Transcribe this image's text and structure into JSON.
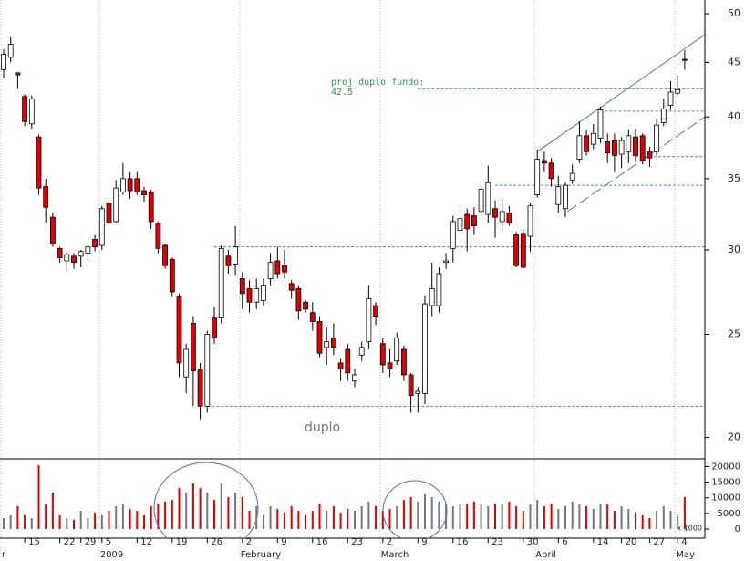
{
  "chart_data": {
    "type": "candlestick",
    "log_scale": true,
    "up_color": "#ffffff",
    "down_color": "#e00000",
    "level_color": "#4a8ab0",
    "trend_color": "#4a6fd0",
    "ylim": [
      19.1,
      51.5
    ],
    "yticks": [
      20,
      25,
      30,
      35,
      40,
      45,
      50
    ],
    "categories": [
      null,
      null,
      null,
      "15",
      null,
      null,
      null,
      null,
      "22",
      null,
      null,
      "29",
      null,
      null,
      "5",
      null,
      null,
      null,
      null,
      "12",
      null,
      null,
      null,
      null,
      "19",
      null,
      null,
      null,
      null,
      "26",
      null,
      null,
      null,
      null,
      "2",
      null,
      null,
      null,
      null,
      "9",
      null,
      null,
      null,
      null,
      "16",
      null,
      null,
      null,
      null,
      "23",
      null,
      null,
      null,
      null,
      "2",
      null,
      null,
      null,
      null,
      "9",
      null,
      null,
      null,
      null,
      "16",
      null,
      null,
      null,
      null,
      "23",
      null,
      null,
      null,
      null,
      "30",
      null,
      null,
      null,
      null,
      "6",
      null,
      null,
      null,
      null,
      "14",
      null,
      null,
      null,
      "20",
      null,
      null,
      null,
      "27",
      null,
      null,
      null,
      "4",
      null
    ],
    "months": [
      "r",
      null,
      null,
      null,
      null,
      null,
      null,
      null,
      null,
      null,
      null,
      null,
      null,
      null,
      "2009",
      null,
      null,
      null,
      null,
      null,
      null,
      null,
      null,
      null,
      null,
      null,
      null,
      null,
      null,
      null,
      null,
      null,
      null,
      null,
      "February",
      null,
      null,
      null,
      null,
      null,
      null,
      null,
      null,
      null,
      null,
      null,
      null,
      null,
      null,
      null,
      null,
      null,
      null,
      null,
      "March",
      null,
      null,
      null,
      null,
      null,
      null,
      null,
      null,
      null,
      null,
      null,
      null,
      null,
      null,
      null,
      null,
      null,
      null,
      null,
      null,
      null,
      "April",
      null,
      null,
      null,
      null,
      null,
      null,
      null,
      null,
      null,
      null,
      null,
      null,
      null,
      null,
      null,
      null,
      null,
      null,
      null,
      "May",
      null
    ],
    "open": [
      44.3,
      45.5,
      44,
      41.8,
      39.4,
      38.3,
      34.4,
      32.2,
      30.1,
      29.3,
      29.6,
      29.6,
      29.8,
      30.7,
      30.3,
      33.2,
      31.9,
      34,
      35.0,
      35.0,
      34.1,
      34.0,
      31.8,
      30.3,
      29.4,
      27.1,
      22.8,
      25.6,
      23.2,
      21.4,
      25.9,
      25.9,
      29.6,
      29.1,
      28.2,
      27.6,
      26.8,
      26.9,
      28.2,
      29.3,
      29.0,
      27.9,
      27.6,
      26.8,
      26.2,
      25.7,
      24.3,
      24.8,
      23.5,
      24.2,
      22.6,
      23.9,
      24.6,
      26.6,
      24.5,
      23.5,
      23.6,
      24.2,
      22.9,
      22.0,
      22.0,
      26.6,
      26.6,
      29.2,
      30.1,
      31.3,
      32.4,
      32.3,
      32.6,
      32.4,
      32.8,
      31.9,
      32.5,
      31,
      31.1,
      30.9,
      33.8,
      36.4,
      36.2,
      33.1,
      32.8,
      34.9,
      36.5,
      38.4,
      37.7,
      38.2,
      37.9,
      38,
      36.9,
      37.1,
      38.3,
      38.4,
      37.1,
      37.1,
      39.5,
      41,
      42.1,
      45.3
    ],
    "high": [
      46.3,
      47.5,
      44,
      42,
      41.9,
      38.5,
      35,
      32.5,
      30.2,
      29.9,
      29.8,
      30,
      30.3,
      31,
      33,
      33.4,
      34.9,
      36.2,
      35.5,
      35.5,
      34.4,
      34.2,
      31.9,
      30.4,
      29.5,
      27.3,
      24.5,
      26,
      23.5,
      25.2,
      26.5,
      30.3,
      30,
      31.6,
      28.6,
      28.1,
      28.2,
      28.2,
      29.8,
      30.2,
      30,
      28.1,
      27.8,
      26.9,
      26.8,
      26,
      25.4,
      25.6,
      23.7,
      24.5,
      23.2,
      24.6,
      27.8,
      26.8,
      24.8,
      24.2,
      25.1,
      24.4,
      23,
      22.3,
      27.2,
      29.2,
      28.9,
      29.8,
      32.3,
      32.7,
      32.8,
      32.9,
      34.5,
      36.0,
      33.4,
      33.5,
      33,
      31.2,
      31.4,
      33.2,
      37.3,
      37.1,
      36.6,
      35.2,
      34.7,
      36.1,
      39.6,
      38.9,
      39.4,
      40.9,
      38.6,
      38.6,
      38.3,
      38.9,
      39,
      38.6,
      37.5,
      39.8,
      41.6,
      43.2,
      43.8,
      46.2
    ],
    "low": [
      43.5,
      45,
      42.5,
      39.2,
      39,
      33.8,
      31.8,
      30.2,
      29.2,
      28.7,
      28.8,
      28.9,
      29.3,
      29.9,
      30,
      31.6,
      31.8,
      33.8,
      33.5,
      33.8,
      33.3,
      31.4,
      29.8,
      28.8,
      27.1,
      22.8,
      22,
      21.4,
      20.8,
      21.1,
      24.5,
      25.6,
      28.5,
      28.4,
      26.4,
      26.2,
      26.4,
      26.6,
      27.8,
      28.2,
      28.2,
      27,
      25.8,
      26.2,
      25.2,
      23.8,
      23.4,
      23.9,
      22.6,
      22.6,
      22.3,
      23.6,
      24.2,
      25.5,
      23,
      22.8,
      23.4,
      22.6,
      21.1,
      21.1,
      21.5,
      26,
      26.2,
      28.8,
      29.2,
      30.5,
      29.9,
      31,
      32.3,
      31.8,
      30.8,
      31.3,
      31.6,
      28.9,
      28.8,
      29.9,
      33.6,
      35.5,
      34.4,
      32.5,
      32.2,
      34.6,
      36.2,
      36.8,
      37.3,
      37.8,
      36.2,
      35.5,
      35.8,
      36.2,
      36.3,
      36.1,
      35.9,
      36.8,
      39.2,
      40.6,
      41.9,
      44.3
    ],
    "close": [
      45.8,
      46.8,
      43.8,
      39.6,
      41.6,
      34.3,
      32.9,
      30.4,
      29.5,
      29.7,
      29.2,
      29.9,
      30.2,
      30.2,
      32.8,
      31.8,
      34.3,
      35.0,
      34.1,
      34.0,
      33.8,
      31.9,
      30.1,
      29.0,
      27.4,
      23.5,
      24.2,
      23.1,
      21.4,
      25,
      24.8,
      30.1,
      29.0,
      30.2,
      27.3,
      26.8,
      27.6,
      27.8,
      29.2,
      28.5,
      28.6,
      27.5,
      26.3,
      26.4,
      25.7,
      24.0,
      24.6,
      24.3,
      23.2,
      23.0,
      22.9,
      24.3,
      27.0,
      26.0,
      23.4,
      23.2,
      24.8,
      22.9,
      21.9,
      22.1,
      26.7,
      27.6,
      28.5,
      29.3,
      31.9,
      32.1,
      31.4,
      31.6,
      34.2,
      34.7,
      32.2,
      32.6,
      31.8,
      29,
      28.9,
      33,
      36.5,
      36.2,
      35.0,
      34.4,
      34.5,
      35.4,
      38.4,
      37.1,
      38.6,
      40.6,
      37.0,
      36.8,
      38,
      38.4,
      36.8,
      36.4,
      36.6,
      39.3,
      40.7,
      42.2,
      42.4,
      45.2
    ],
    "levels": [
      {
        "value": 42.5,
        "from": 59
      },
      {
        "value": 40.5,
        "from": 85
      },
      {
        "value": 36.7,
        "from": 90
      },
      {
        "value": 34.5,
        "from": 70
      },
      {
        "value": 30.2,
        "from": 30
      },
      {
        "value": 21.4,
        "from": 29
      }
    ],
    "trendlines": [
      {
        "x": [
          76,
          99.9
        ],
        "y": [
          37.1,
          47.8
        ],
        "dashed": false
      },
      {
        "x": [
          80.3,
          99.9
        ],
        "y": [
          32.6,
          40.0
        ],
        "dashed": true
      }
    ],
    "annotations": [
      "proj duplo fundo:",
      "42.5",
      "duplo"
    ],
    "volume": {
      "up_color": "#777777",
      "down_color": "#e00000",
      "ylim": [
        0,
        21000
      ],
      "yticks": [
        0,
        5000,
        10000,
        15000,
        20000
      ],
      "unit_label": "x 1000",
      "values": [
        3500,
        4400,
        7300,
        4400,
        3500,
        20400,
        7900,
        11700,
        4400,
        3500,
        2900,
        5800,
        3500,
        5300,
        4400,
        5800,
        7300,
        7900,
        6400,
        5800,
        4400,
        7300,
        8200,
        8800,
        9300,
        13100,
        11700,
        14600,
        13100,
        11700,
        9300,
        14600,
        10200,
        11700,
        10200,
        5800,
        7300,
        4400,
        7300,
        6400,
        5300,
        7300,
        5800,
        4400,
        5800,
        8200,
        5800,
        7300,
        5300,
        6400,
        5800,
        7300,
        8800,
        7300,
        5800,
        6400,
        7300,
        9300,
        10200,
        8800,
        11100,
        10200,
        8800,
        8200,
        7300,
        7900,
        8200,
        8800,
        7900,
        7300,
        8200,
        7900,
        8800,
        7300,
        5800,
        7900,
        9300,
        7300,
        8200,
        6400,
        7300,
        8800,
        7900,
        7300,
        6400,
        8200,
        7900,
        5800,
        7300,
        6400,
        5300,
        4400,
        3500,
        5800,
        7300,
        5800,
        4400,
        10200
      ]
    }
  }
}
